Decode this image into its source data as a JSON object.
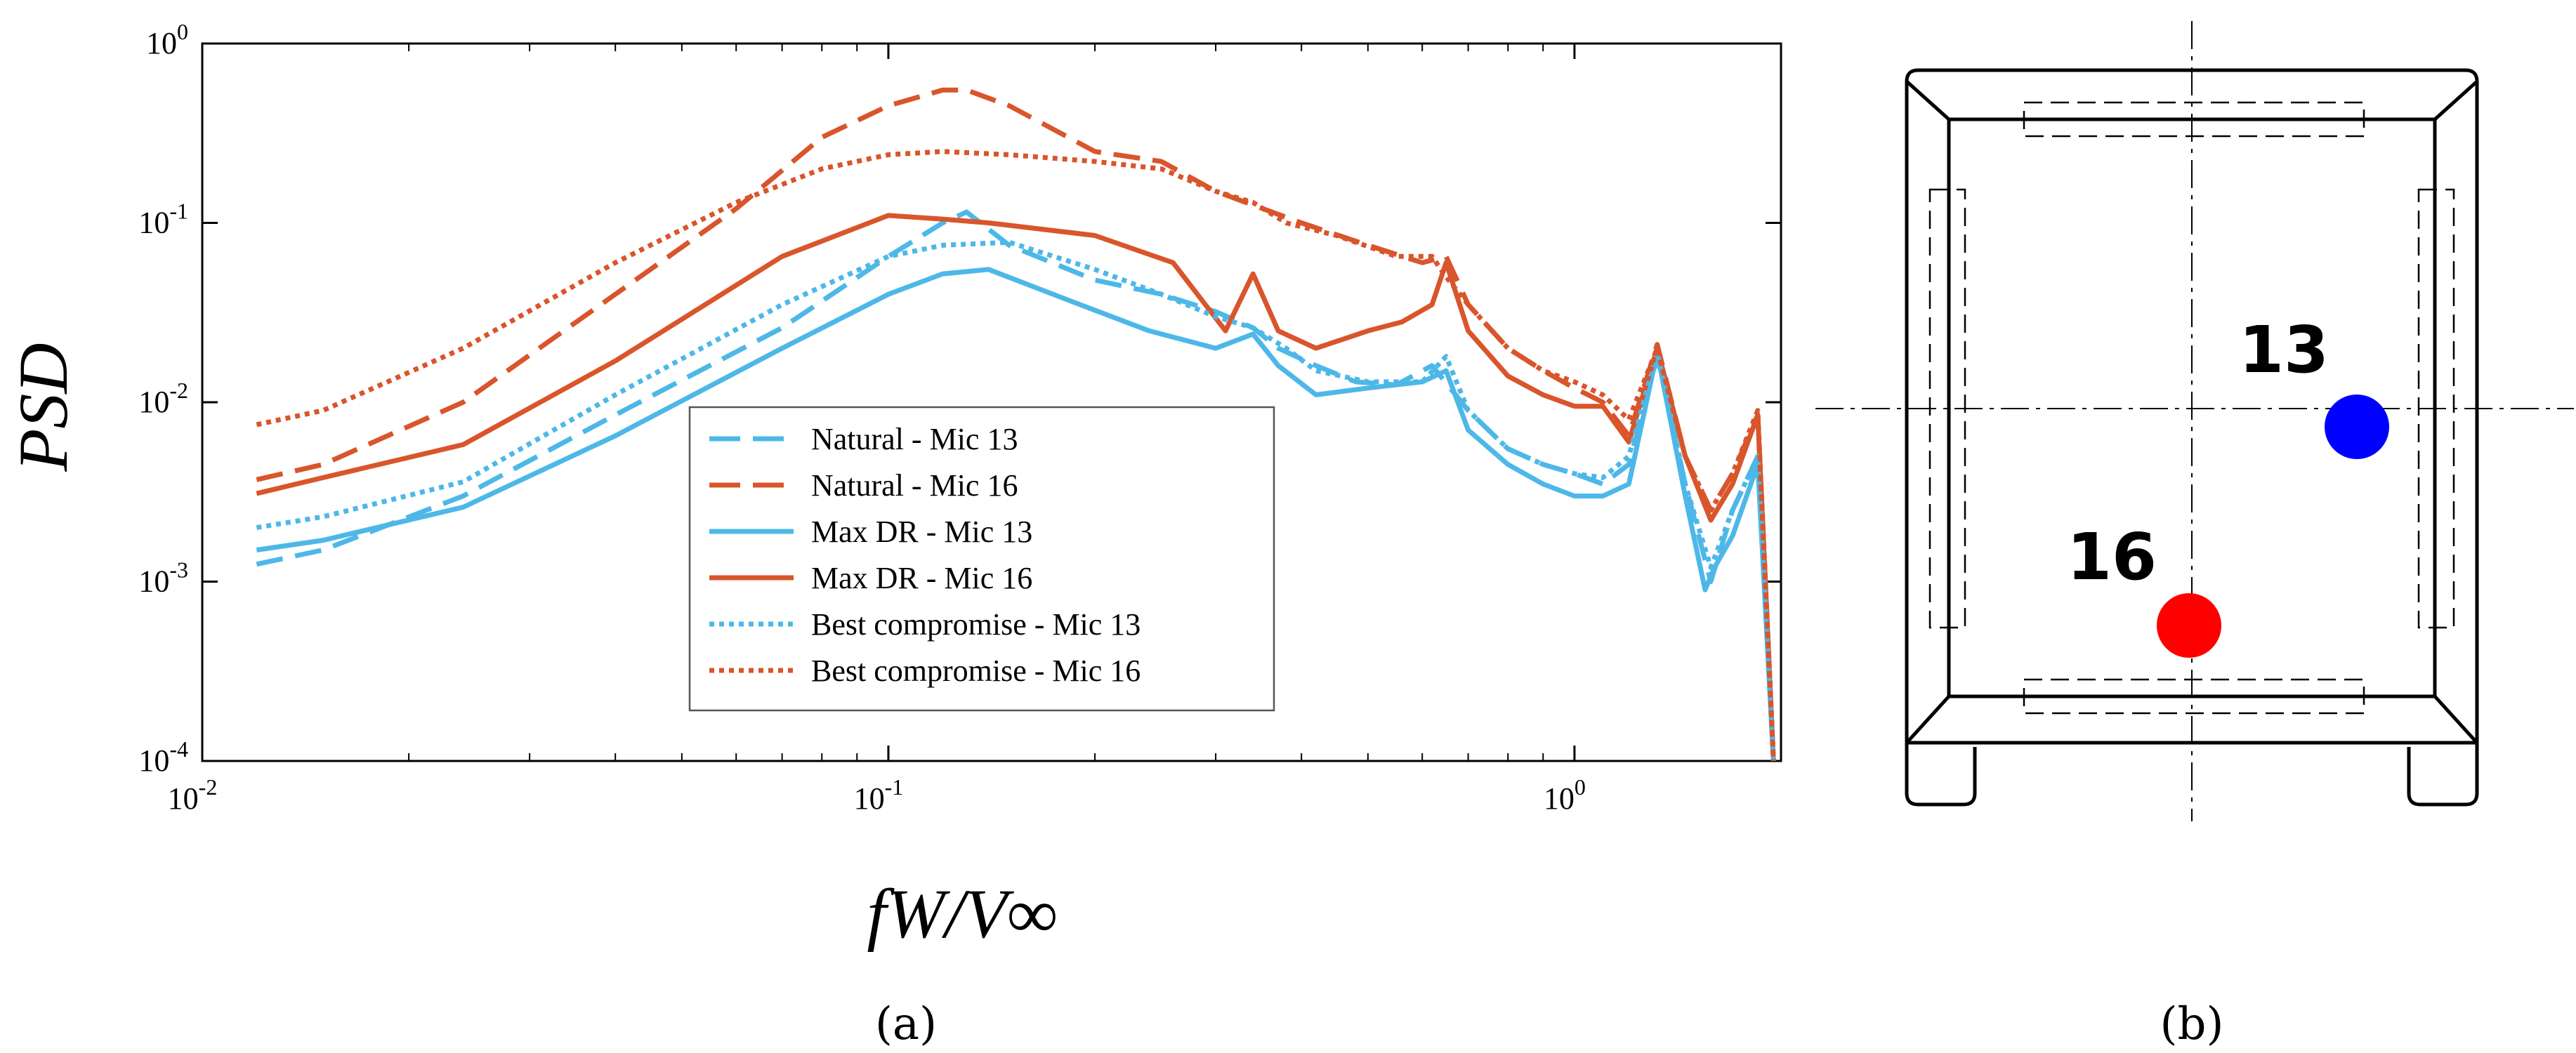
{
  "chart_data": {
    "type": "line",
    "title": "",
    "xlabel": "fW/V∞",
    "ylabel": "PSD",
    "xscale": "log",
    "yscale": "log",
    "xlim": [
      0.01,
      2.0
    ],
    "ylim": [
      0.0001,
      1
    ],
    "x_ticks": [
      {
        "value": 0.01,
        "base": "10",
        "exp": "-2"
      },
      {
        "value": 0.1,
        "base": "10",
        "exp": "-1"
      },
      {
        "value": 1,
        "base": "10",
        "exp": "0"
      }
    ],
    "y_ticks": [
      {
        "value": 1,
        "base": "10",
        "exp": "0"
      },
      {
        "value": 0.1,
        "base": "10",
        "exp": "-1"
      },
      {
        "value": 0.01,
        "base": "10",
        "exp": "-2"
      },
      {
        "value": 0.001,
        "base": "10",
        "exp": "-3"
      },
      {
        "value": 0.0001,
        "base": "10",
        "exp": "-4"
      }
    ],
    "legend_position": "lower-center",
    "series": [
      {
        "name": "Natural  - Mic 13",
        "color": "#4DB8E8",
        "style": "dashed",
        "x": [
          0.012,
          0.015,
          0.024,
          0.04,
          0.07,
          0.1,
          0.12,
          0.13,
          0.15,
          0.2,
          0.25,
          0.3,
          0.34,
          0.37,
          0.42,
          0.48,
          0.55,
          0.62,
          0.7,
          0.8,
          0.9,
          1.0,
          1.1,
          1.2,
          1.32,
          1.45,
          1.58,
          1.7,
          1.85,
          1.95
        ],
        "y": [
          0.00125,
          0.0015,
          0.003,
          0.0085,
          0.026,
          0.065,
          0.1,
          0.115,
          0.075,
          0.048,
          0.04,
          0.032,
          0.026,
          0.02,
          0.016,
          0.013,
          0.0125,
          0.016,
          0.009,
          0.0055,
          0.0045,
          0.004,
          0.0035,
          0.0045,
          0.018,
          0.0035,
          0.001,
          0.0025,
          0.005,
          0.0001
        ]
      },
      {
        "name": "Natural  - Mic 16",
        "color": "#D9552B",
        "style": "dashed",
        "x": [
          0.012,
          0.015,
          0.024,
          0.04,
          0.06,
          0.08,
          0.1,
          0.12,
          0.13,
          0.15,
          0.2,
          0.25,
          0.3,
          0.4,
          0.5,
          0.6,
          0.65,
          0.7,
          0.8,
          0.9,
          1.0,
          1.1,
          1.2,
          1.32,
          1.45,
          1.58,
          1.7,
          1.85,
          1.95
        ],
        "y": [
          0.0037,
          0.0045,
          0.01,
          0.04,
          0.12,
          0.3,
          0.45,
          0.55,
          0.55,
          0.45,
          0.25,
          0.22,
          0.15,
          0.1,
          0.075,
          0.06,
          0.065,
          0.035,
          0.02,
          0.015,
          0.012,
          0.01,
          0.0065,
          0.021,
          0.005,
          0.0025,
          0.004,
          0.0085,
          0.0001
        ]
      },
      {
        "name": "Max DR - Mic 13",
        "color": "#4DB8E8",
        "style": "solid",
        "x": [
          0.012,
          0.015,
          0.024,
          0.04,
          0.07,
          0.1,
          0.12,
          0.14,
          0.18,
          0.24,
          0.3,
          0.34,
          0.37,
          0.42,
          0.5,
          0.6,
          0.65,
          0.7,
          0.8,
          0.9,
          1.0,
          1.1,
          1.2,
          1.32,
          1.45,
          1.55,
          1.6,
          1.7,
          1.85,
          1.95
        ],
        "y": [
          0.0015,
          0.0017,
          0.0026,
          0.0065,
          0.02,
          0.04,
          0.052,
          0.055,
          0.038,
          0.025,
          0.02,
          0.024,
          0.016,
          0.011,
          0.012,
          0.013,
          0.015,
          0.007,
          0.0045,
          0.0035,
          0.003,
          0.003,
          0.0035,
          0.019,
          0.003,
          0.0009,
          0.0012,
          0.0018,
          0.0045,
          0.0001
        ]
      },
      {
        "name": "Max DR - Mic 16",
        "color": "#D9552B",
        "style": "solid",
        "x": [
          0.012,
          0.015,
          0.024,
          0.04,
          0.07,
          0.1,
          0.12,
          0.14,
          0.2,
          0.26,
          0.31,
          0.34,
          0.37,
          0.42,
          0.5,
          0.56,
          0.62,
          0.65,
          0.7,
          0.8,
          0.9,
          1.0,
          1.1,
          1.2,
          1.32,
          1.45,
          1.58,
          1.7,
          1.85,
          1.95
        ],
        "y": [
          0.0031,
          0.0038,
          0.0058,
          0.017,
          0.065,
          0.11,
          0.105,
          0.1,
          0.085,
          0.06,
          0.025,
          0.052,
          0.025,
          0.02,
          0.025,
          0.028,
          0.035,
          0.06,
          0.025,
          0.014,
          0.011,
          0.0095,
          0.0095,
          0.006,
          0.02,
          0.005,
          0.0022,
          0.0035,
          0.0085,
          0.0001
        ]
      },
      {
        "name": "Best compromise - Mic 13",
        "color": "#4DB8E8",
        "style": "dotted",
        "x": [
          0.012,
          0.015,
          0.024,
          0.04,
          0.07,
          0.1,
          0.12,
          0.15,
          0.2,
          0.25,
          0.3,
          0.34,
          0.38,
          0.42,
          0.5,
          0.6,
          0.65,
          0.7,
          0.8,
          0.9,
          1.0,
          1.1,
          1.2,
          1.32,
          1.45,
          1.58,
          1.7,
          1.85,
          1.95
        ],
        "y": [
          0.002,
          0.0023,
          0.0036,
          0.011,
          0.035,
          0.065,
          0.075,
          0.078,
          0.055,
          0.04,
          0.03,
          0.026,
          0.02,
          0.015,
          0.013,
          0.013,
          0.018,
          0.009,
          0.0055,
          0.0045,
          0.004,
          0.0038,
          0.005,
          0.019,
          0.0035,
          0.0012,
          0.0025,
          0.005,
          0.0001
        ]
      },
      {
        "name": "Best compromise - Mic 16",
        "color": "#D9552B",
        "style": "dotted",
        "x": [
          0.012,
          0.015,
          0.024,
          0.04,
          0.06,
          0.08,
          0.1,
          0.12,
          0.15,
          0.2,
          0.25,
          0.3,
          0.34,
          0.38,
          0.45,
          0.55,
          0.62,
          0.65,
          0.7,
          0.8,
          0.9,
          1.0,
          1.1,
          1.2,
          1.32,
          1.45,
          1.58,
          1.7,
          1.85,
          1.95
        ],
        "y": [
          0.0075,
          0.009,
          0.02,
          0.06,
          0.13,
          0.2,
          0.24,
          0.25,
          0.24,
          0.22,
          0.2,
          0.15,
          0.13,
          0.1,
          0.085,
          0.065,
          0.065,
          0.05,
          0.035,
          0.02,
          0.015,
          0.013,
          0.011,
          0.008,
          0.02,
          0.005,
          0.0025,
          0.004,
          0.009,
          0.0001
        ]
      }
    ]
  },
  "diagram": {
    "mic13_label": "13",
    "mic16_label": "16",
    "mic13_color": "#0000FF",
    "mic16_color": "#FF0000"
  },
  "captions": {
    "a": "(a)",
    "b": "(b)"
  }
}
